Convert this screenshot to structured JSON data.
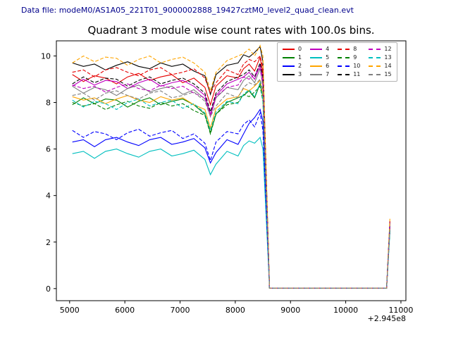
{
  "header": {
    "data_file_label": "Data file: modeM0/AS1A05_221T01_9000002888_19427cztM0_level2_quad_clean.evt"
  },
  "chart_data": {
    "type": "line",
    "title": "Quadrant 3 module wise count rates with 100.0s bins.",
    "xlabel": "",
    "ylabel": "",
    "x_offset_label": "+2.945e8",
    "xlim": [
      4760,
      11090
    ],
    "ylim": [
      -0.52,
      10.65
    ],
    "xticks": [
      5000,
      6000,
      7000,
      8000,
      9000,
      10000,
      11000
    ],
    "yticks": [
      0,
      2,
      4,
      6,
      8,
      10
    ],
    "grid": false,
    "legend_position": "upper right",
    "legend_columns": 4,
    "x": [
      5050,
      5250,
      5450,
      5650,
      5850,
      6050,
      6250,
      6450,
      6650,
      6850,
      7050,
      7250,
      7450,
      7550,
      7650,
      7850,
      8050,
      8150,
      8250,
      8350,
      8450,
      8500,
      8620,
      9000,
      9500,
      10000,
      10500,
      10740,
      10800
    ],
    "series": [
      {
        "name": "0",
        "color": "#e60000",
        "dash": "solid",
        "values": [
          9.2,
          8.9,
          9.15,
          9.05,
          8.8,
          9.1,
          9.25,
          8.95,
          9.1,
          9.2,
          8.85,
          9.05,
          8.65,
          7.9,
          8.7,
          9.15,
          9.05,
          9.45,
          9.65,
          9.35,
          9.95,
          9.2,
          0.02,
          0.02,
          0.02,
          0.02,
          0.02,
          0.02,
          2.8
        ]
      },
      {
        "name": "1",
        "color": "#008000",
        "dash": "solid",
        "values": [
          7.9,
          8.2,
          7.95,
          8.15,
          8.1,
          7.8,
          8.05,
          8.2,
          7.9,
          8.05,
          8.15,
          7.9,
          7.5,
          6.7,
          7.5,
          8.0,
          8.2,
          8.3,
          8.5,
          8.2,
          8.8,
          8.2,
          0.02,
          0.02,
          0.02,
          0.02,
          0.02,
          0.02,
          2.6
        ]
      },
      {
        "name": "2",
        "color": "#0000ff",
        "dash": "solid",
        "values": [
          6.3,
          6.4,
          6.1,
          6.4,
          6.5,
          6.3,
          6.15,
          6.4,
          6.5,
          6.2,
          6.3,
          6.45,
          6.05,
          5.4,
          5.85,
          6.4,
          6.2,
          6.65,
          7.1,
          7.35,
          7.7,
          7.2,
          0.02,
          0.02,
          0.02,
          0.02,
          0.02,
          0.02,
          2.9
        ]
      },
      {
        "name": "3",
        "color": "#000000",
        "dash": "solid",
        "values": [
          9.7,
          9.55,
          9.65,
          9.4,
          9.6,
          9.75,
          9.55,
          9.45,
          9.7,
          9.55,
          9.65,
          9.35,
          9.15,
          8.35,
          9.2,
          9.6,
          9.7,
          10.05,
          9.95,
          10.15,
          10.4,
          9.75,
          0.02,
          0.02,
          0.02,
          0.02,
          0.02,
          0.02,
          2.7
        ]
      },
      {
        "name": "4",
        "color": "#bf00bf",
        "dash": "solid",
        "values": [
          8.7,
          9.0,
          8.75,
          8.95,
          8.9,
          8.6,
          8.85,
          9.0,
          8.7,
          8.85,
          8.95,
          8.7,
          8.3,
          7.5,
          8.3,
          8.8,
          9.0,
          9.1,
          9.3,
          9.0,
          9.6,
          9.0,
          0.02,
          0.02,
          0.02,
          0.02,
          0.02,
          0.02,
          2.5
        ]
      },
      {
        "name": "5",
        "color": "#00bfbf",
        "dash": "solid",
        "values": [
          5.8,
          5.9,
          5.6,
          5.9,
          6.0,
          5.8,
          5.65,
          5.9,
          6.0,
          5.7,
          5.8,
          5.95,
          5.55,
          4.9,
          5.35,
          5.9,
          5.7,
          6.15,
          6.35,
          6.25,
          6.5,
          6.0,
          0.02,
          0.02,
          0.02,
          0.02,
          0.02,
          0.02,
          2.4
        ]
      },
      {
        "name": "6",
        "color": "#ffa500",
        "dash": "solid",
        "values": [
          8.25,
          8.1,
          8.2,
          7.95,
          8.15,
          8.3,
          8.1,
          8.0,
          8.25,
          8.1,
          8.2,
          7.9,
          7.7,
          6.9,
          7.75,
          8.15,
          8.25,
          8.6,
          8.5,
          8.7,
          8.95,
          8.3,
          0.02,
          0.02,
          0.02,
          0.02,
          0.02,
          0.02,
          2.6
        ]
      },
      {
        "name": "7",
        "color": "#808080",
        "dash": "solid",
        "values": [
          8.7,
          8.4,
          8.65,
          8.55,
          8.3,
          8.6,
          8.75,
          8.45,
          8.6,
          8.7,
          8.35,
          8.55,
          8.15,
          7.4,
          8.2,
          8.65,
          8.55,
          8.95,
          9.15,
          8.85,
          9.45,
          8.7,
          0.02,
          0.02,
          0.02,
          0.02,
          0.02,
          0.02,
          2.7
        ]
      },
      {
        "name": "8",
        "color": "#e60000",
        "dash": "dashed",
        "values": [
          9.3,
          9.4,
          9.1,
          9.4,
          9.5,
          9.3,
          9.15,
          9.4,
          9.5,
          9.2,
          9.3,
          9.45,
          9.05,
          8.4,
          8.85,
          9.4,
          9.2,
          9.65,
          9.85,
          9.75,
          10.0,
          9.5,
          0.02,
          0.02,
          0.02,
          0.02,
          0.02,
          0.02,
          2.9
        ]
      },
      {
        "name": "9",
        "color": "#008000",
        "dash": "dashed",
        "values": [
          8.0,
          7.85,
          7.95,
          7.7,
          7.9,
          8.05,
          7.85,
          7.75,
          8.0,
          7.85,
          7.95,
          7.65,
          7.45,
          6.65,
          7.5,
          7.9,
          8.0,
          8.35,
          8.25,
          8.45,
          8.7,
          8.05,
          0.02,
          0.02,
          0.02,
          0.02,
          0.02,
          0.02,
          2.5
        ]
      },
      {
        "name": "10",
        "color": "#0000ff",
        "dash": "dashed",
        "values": [
          6.8,
          6.5,
          6.75,
          6.65,
          6.4,
          6.7,
          6.85,
          6.55,
          6.7,
          6.8,
          6.45,
          6.65,
          6.25,
          5.5,
          6.3,
          6.75,
          6.65,
          7.05,
          7.25,
          6.95,
          7.55,
          6.8,
          0.02,
          0.02,
          0.02,
          0.02,
          0.02,
          0.02,
          2.8
        ]
      },
      {
        "name": "11",
        "color": "#000000",
        "dash": "dashed",
        "values": [
          8.8,
          9.1,
          8.85,
          9.05,
          9.0,
          8.7,
          8.95,
          9.1,
          8.8,
          8.95,
          9.05,
          8.8,
          8.4,
          7.6,
          8.4,
          8.9,
          9.1,
          9.2,
          9.4,
          9.1,
          9.7,
          9.1,
          0.02,
          0.02,
          0.02,
          0.02,
          0.02,
          0.02,
          2.6
        ]
      },
      {
        "name": "12",
        "color": "#bf00bf",
        "dash": "dashed",
        "values": [
          8.75,
          8.6,
          8.7,
          8.45,
          8.65,
          8.8,
          8.6,
          8.5,
          8.75,
          8.6,
          8.7,
          8.4,
          8.2,
          7.4,
          8.25,
          8.65,
          8.75,
          9.1,
          9.0,
          9.2,
          9.45,
          8.8,
          0.02,
          0.02,
          0.02,
          0.02,
          0.02,
          0.02,
          2.7
        ]
      },
      {
        "name": "13",
        "color": "#00bfbf",
        "dash": "dashed",
        "values": [
          8.1,
          7.8,
          8.05,
          7.95,
          7.7,
          8.0,
          8.15,
          7.85,
          8.0,
          8.1,
          7.75,
          7.95,
          7.55,
          6.8,
          7.6,
          8.05,
          7.95,
          8.35,
          8.55,
          8.25,
          8.85,
          8.1,
          0.02,
          0.02,
          0.02,
          0.02,
          0.02,
          0.02,
          2.5
        ]
      },
      {
        "name": "14",
        "color": "#ffa500",
        "dash": "dashed",
        "values": [
          9.7,
          10.0,
          9.75,
          9.95,
          9.9,
          9.6,
          9.85,
          10.0,
          9.7,
          9.85,
          9.95,
          9.7,
          9.3,
          8.5,
          9.3,
          9.8,
          10.0,
          10.1,
          10.3,
          10.0,
          10.45,
          10.0,
          0.02,
          0.02,
          0.02,
          0.02,
          0.02,
          0.02,
          3.0
        ]
      },
      {
        "name": "15",
        "color": "#808080",
        "dash": "dashed",
        "values": [
          8.3,
          8.4,
          8.1,
          8.4,
          8.5,
          8.3,
          8.15,
          8.4,
          8.5,
          8.2,
          8.3,
          8.45,
          8.05,
          7.4,
          7.85,
          8.4,
          8.2,
          8.65,
          8.85,
          8.75,
          9.0,
          8.5,
          0.02,
          0.02,
          0.02,
          0.02,
          0.02,
          0.02,
          2.6
        ]
      }
    ]
  }
}
